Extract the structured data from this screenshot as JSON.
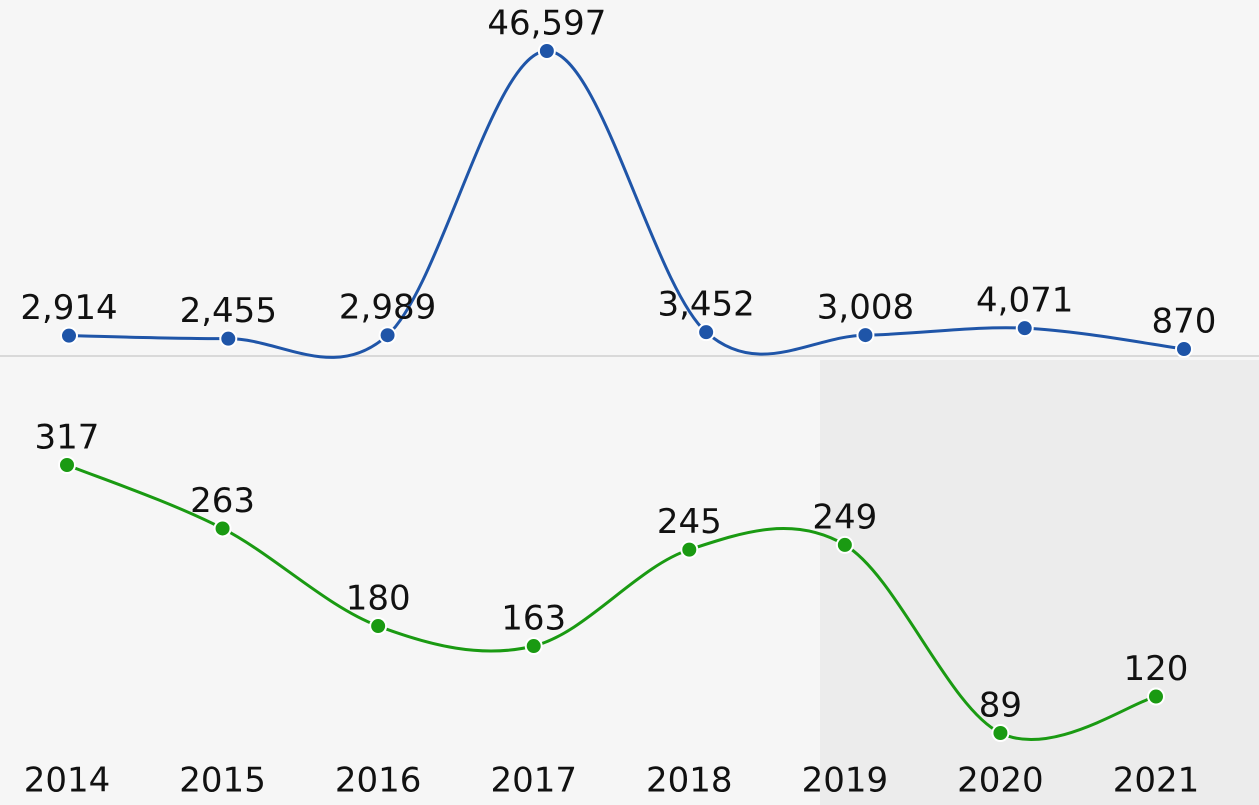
{
  "chart_data": {
    "type": "line",
    "categories": [
      "2014",
      "2015",
      "2016",
      "2017",
      "2018",
      "2019",
      "2020",
      "2021"
    ],
    "series": [
      {
        "color": "#1f55a8",
        "values": [
          2914,
          2455,
          2989,
          46597,
          3452,
          3008,
          4071,
          870
        ],
        "value_labels": [
          "2,914",
          "2,455",
          "2,989",
          "46,597",
          "3,452",
          "3,008",
          "4,071",
          "870"
        ]
      },
      {
        "color": "#1a9a12",
        "values": [
          317,
          263,
          180,
          163,
          245,
          249,
          89,
          120
        ]
      }
    ]
  }
}
